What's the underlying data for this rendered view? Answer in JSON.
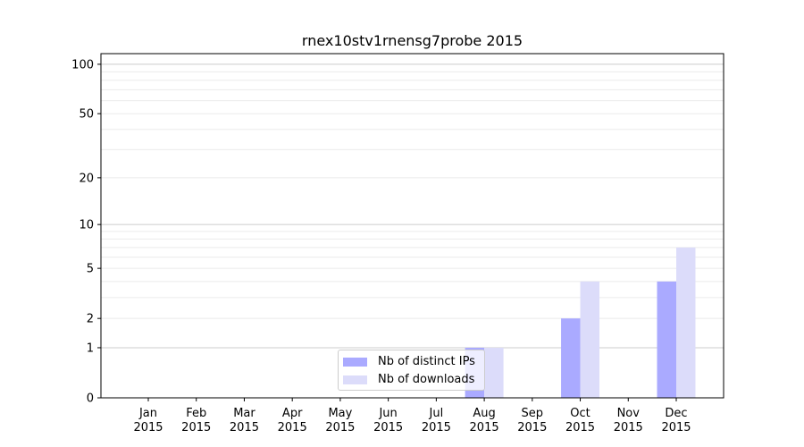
{
  "chart_data": {
    "type": "bar",
    "title": "rnex10stv1rnensg7probe 2015",
    "xlabel": "",
    "ylabel": "",
    "yscale": "symlog (log of 1+y)",
    "ylim": [
      0,
      116
    ],
    "yticks": [
      0,
      1,
      2,
      5,
      10,
      20,
      50,
      100
    ],
    "grid": true,
    "legend_position": "bottom-center",
    "categories": [
      "Jan\n2015",
      "Feb\n2015",
      "Mar\n2015",
      "Apr\n2015",
      "May\n2015",
      "Jun\n2015",
      "Jul\n2015",
      "Aug\n2015",
      "Sep\n2015",
      "Oct\n2015",
      "Nov\n2015",
      "Dec\n2015"
    ],
    "series": [
      {
        "name": "Nb of distinct IPs",
        "color": "#aaaaff",
        "values": [
          0,
          0,
          0,
          0,
          0,
          0,
          0,
          1,
          0,
          2,
          0,
          4
        ]
      },
      {
        "name": "Nb of downloads",
        "color": "#dcdcfa",
        "values": [
          0,
          0,
          0,
          0,
          0,
          0,
          0,
          1,
          0,
          4,
          0,
          7
        ]
      }
    ]
  }
}
